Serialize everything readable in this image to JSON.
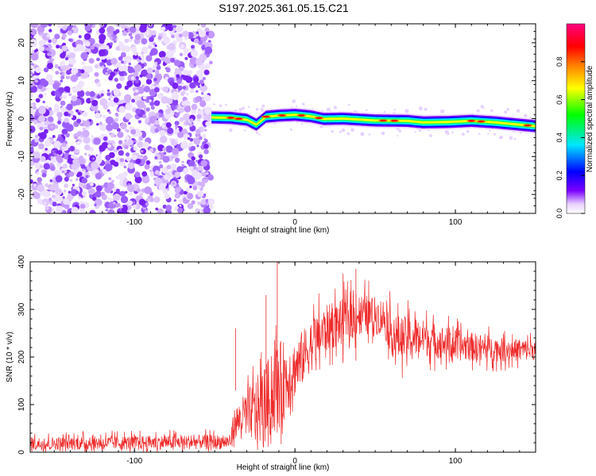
{
  "figure_title": "S197.2025.361.05.15.C21",
  "colors": {
    "noise_purple": "#7b2ff7",
    "snr_line": "#ee2a2a",
    "axis": "#000000"
  },
  "chart_data": [
    {
      "type": "heatmap",
      "title": "S197.2025.361.05.15.C21",
      "xlabel": "Height of straight line (km)",
      "ylabel": "Frequency (Hz)",
      "xlim": [
        -165,
        150
      ],
      "ylim": [
        -25,
        25
      ],
      "xticks": [
        -100,
        0,
        100
      ],
      "xtick_labels": [
        "-100",
        "0",
        "100"
      ],
      "yticks": [
        -20,
        -10,
        0,
        10,
        20
      ],
      "ytick_labels": [
        "-20",
        "-10",
        "0",
        "10",
        "20"
      ],
      "noise_region_x": [
        -165,
        -52
      ],
      "signal_band": {
        "x_start": -52,
        "x_end": 150,
        "center_freq_points": [
          [
            -52,
            0.3
          ],
          [
            -40,
            0.2
          ],
          [
            -30,
            -0.3
          ],
          [
            -24,
            -1.6
          ],
          [
            -18,
            0.5
          ],
          [
            -10,
            0.8
          ],
          [
            0,
            1.0
          ],
          [
            10,
            0.6
          ],
          [
            18,
            -0.1
          ],
          [
            30,
            0.0
          ],
          [
            50,
            -0.5
          ],
          [
            70,
            -0.6
          ],
          [
            80,
            -1.0
          ],
          [
            95,
            -0.9
          ],
          [
            110,
            -0.6
          ],
          [
            125,
            -1.0
          ],
          [
            140,
            -1.6
          ],
          [
            150,
            -2.0
          ]
        ],
        "hot_spots_x": [
          -40,
          -35,
          -18,
          -8,
          4,
          15,
          55,
          62,
          110,
          116,
          145
        ]
      },
      "colorbar": {
        "label": "Normalized spectral amplitude",
        "range": [
          0,
          1
        ],
        "ticks": [
          0.0,
          0.2,
          0.4,
          0.6,
          0.8
        ],
        "tick_labels": [
          "0.0",
          "0.2",
          "0.4",
          "0.6",
          "0.8"
        ],
        "colormap": [
          "#ffffff",
          "#7b00ff",
          "#0000ff",
          "#00e5ff",
          "#00ff00",
          "#ffff00",
          "#ff8000",
          "#ff0000",
          "#ff007f"
        ]
      }
    },
    {
      "type": "line",
      "xlabel": "Height of straight line (km)",
      "ylabel": "SNR (10 * v/v)",
      "xlim": [
        -165,
        150
      ],
      "ylim": [
        0,
        400
      ],
      "xticks": [
        -100,
        0,
        100
      ],
      "xtick_labels": [
        "-100",
        "0",
        "100"
      ],
      "yticks": [
        0,
        100,
        200,
        300,
        400
      ],
      "ytick_labels": [
        "0",
        "100",
        "200",
        "300",
        "400"
      ],
      "series": [
        {
          "name": "SNR",
          "envelope": [
            [
              -165,
              18,
              25
            ],
            [
              -40,
              22,
              28
            ],
            [
              -38,
              60,
              55
            ],
            [
              -30,
              80,
              90
            ],
            [
              -20,
              95,
              150
            ],
            [
              -10,
              140,
              170
            ],
            [
              0,
              175,
              110
            ],
            [
              10,
              225,
              100
            ],
            [
              20,
              260,
              90
            ],
            [
              40,
              290,
              80
            ],
            [
              55,
              285,
              70
            ],
            [
              62,
              240,
              90
            ],
            [
              80,
              240,
              70
            ],
            [
              100,
              225,
              60
            ],
            [
              130,
              215,
              45
            ],
            [
              150,
              215,
              40
            ]
          ],
          "spikes": [
            [
              -11,
              400
            ],
            [
              -18,
              330
            ],
            [
              -37,
              260
            ],
            [
              38,
              385
            ],
            [
              30,
              375
            ]
          ]
        }
      ]
    }
  ]
}
